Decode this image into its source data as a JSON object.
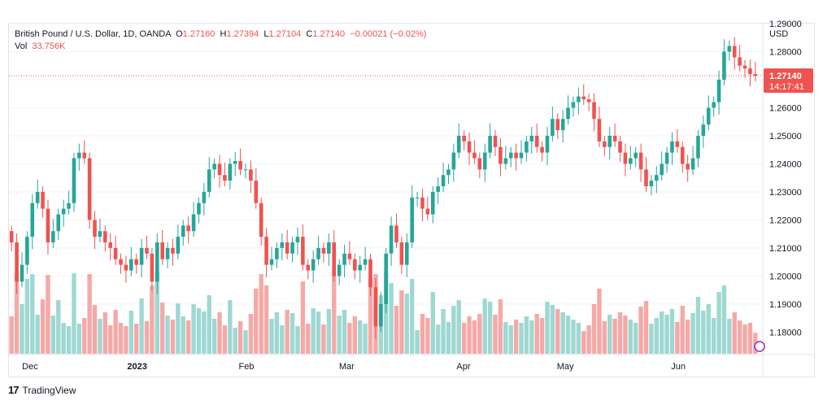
{
  "header": {
    "symbol": "British Pound / U.S. Dollar, 1D, OANDA",
    "o_label": "O",
    "o_value": "1.27160",
    "h_label": "H",
    "h_value": "1.27394",
    "l_label": "L",
    "l_value": "1.27104",
    "c_label": "C",
    "c_value": "1.27140",
    "change": "−0.00021 (−0.02%)",
    "vol_label": "Vol",
    "vol_value": "33.756K"
  },
  "price_label": {
    "price": "1.27140",
    "countdown": "14:17:41"
  },
  "footer": {
    "brand": "TradingView"
  },
  "colors": {
    "up": "#26a69a",
    "down": "#ef5350",
    "up_vol": "#9fd8d2",
    "down_vol": "#f5a9a7"
  },
  "chart_data": {
    "type": "candlestick",
    "currency": "USD",
    "ylim": [
      1.172,
      1.29
    ],
    "y_ticks": [
      "1.29000",
      "1.28000",
      "1.27000",
      "1.26000",
      "1.25000",
      "1.24000",
      "1.23000",
      "1.22000",
      "1.21000",
      "1.20000",
      "1.19000",
      "1.18000"
    ],
    "x_ticks": [
      "Dec",
      "2023",
      "Feb",
      "Mar",
      "Apr",
      "May",
      "Jun"
    ],
    "last_price": 1.2714,
    "closes": [
      1.212,
      1.198,
      1.204,
      1.214,
      1.226,
      1.23,
      1.224,
      1.212,
      1.216,
      1.222,
      1.224,
      1.226,
      1.242,
      1.244,
      1.242,
      1.22,
      1.214,
      1.216,
      1.212,
      1.21,
      1.206,
      1.204,
      1.202,
      1.206,
      1.204,
      1.21,
      1.208,
      1.198,
      1.212,
      1.206,
      1.21,
      1.208,
      1.214,
      1.218,
      1.216,
      1.222,
      1.226,
      1.23,
      1.238,
      1.24,
      1.236,
      1.234,
      1.24,
      1.241,
      1.238,
      1.238,
      1.234,
      1.226,
      1.214,
      1.204,
      1.206,
      1.21,
      1.212,
      1.208,
      1.212,
      1.214,
      1.204,
      1.202,
      1.206,
      1.21,
      1.208,
      1.212,
      1.2,
      1.204,
      1.208,
      1.206,
      1.202,
      1.204,
      1.206,
      1.196,
      1.182,
      1.19,
      1.208,
      1.218,
      1.212,
      1.204,
      1.212,
      1.228,
      1.228,
      1.224,
      1.222,
      1.23,
      1.232,
      1.236,
      1.238,
      1.244,
      1.25,
      1.248,
      1.244,
      1.242,
      1.238,
      1.244,
      1.25,
      1.246,
      1.24,
      1.242,
      1.244,
      1.242,
      1.244,
      1.248,
      1.25,
      1.246,
      1.244,
      1.25,
      1.256,
      1.252,
      1.256,
      1.26,
      1.262,
      1.264,
      1.263,
      1.262,
      1.256,
      1.248,
      1.246,
      1.25,
      1.248,
      1.244,
      1.24,
      1.242,
      1.244,
      1.238,
      1.232,
      1.234,
      1.236,
      1.24,
      1.244,
      1.248,
      1.246,
      1.24,
      1.238,
      1.242,
      1.25,
      1.254,
      1.26,
      1.262,
      1.27,
      1.28,
      1.282,
      1.278,
      1.275,
      1.274,
      1.272,
      1.2714
    ]
  }
}
